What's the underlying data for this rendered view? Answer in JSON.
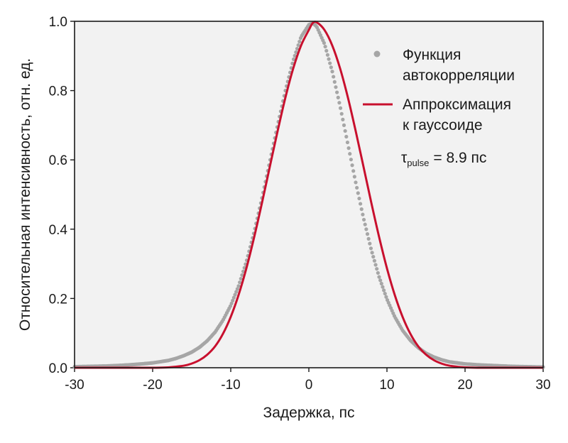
{
  "chart_data": {
    "type": "line",
    "xlabel": "Задержка, пс",
    "ylabel": "Относительная интенсивность, отн. ед.",
    "xlim": [
      -30,
      30
    ],
    "ylim": [
      0,
      1.0
    ],
    "x_ticks": [
      "-30",
      "-20",
      "-10",
      "0",
      "10",
      "20",
      "30"
    ],
    "y_ticks": [
      "0.0",
      "0.2",
      "0.4",
      "0.6",
      "0.8",
      "1.0"
    ],
    "grid": false,
    "legend_position": "top-right",
    "colors": {
      "measured": "#a6a6a6",
      "fit": "#c8102e",
      "plot_background": "#f2f2f2"
    },
    "series": [
      {
        "name_line1": "Функция",
        "name_line2": "автокорреляции",
        "style": "scatter",
        "x": [
          -30,
          -28,
          -26,
          -24,
          -22,
          -20,
          -18,
          -17,
          -16,
          -15,
          -14,
          -13,
          -12,
          -11,
          -10,
          -9,
          -8,
          -7,
          -6,
          -5,
          -4,
          -3,
          -2,
          -1,
          0,
          0.5,
          1,
          2,
          3,
          4,
          5,
          6,
          7,
          8,
          9,
          10,
          11,
          12,
          13,
          14,
          15,
          16,
          17,
          18,
          20,
          22,
          24,
          26,
          28,
          30
        ],
        "y": [
          0.003,
          0.004,
          0.005,
          0.007,
          0.01,
          0.014,
          0.021,
          0.027,
          0.035,
          0.045,
          0.059,
          0.078,
          0.103,
          0.137,
          0.18,
          0.236,
          0.306,
          0.392,
          0.49,
          0.595,
          0.7,
          0.8,
          0.887,
          0.955,
          0.99,
          0.995,
          0.985,
          0.935,
          0.855,
          0.755,
          0.645,
          0.535,
          0.432,
          0.34,
          0.262,
          0.198,
          0.147,
          0.108,
          0.079,
          0.058,
          0.042,
          0.031,
          0.023,
          0.017,
          0.011,
          0.008,
          0.006,
          0.004,
          0.003,
          0.002
        ]
      },
      {
        "name_line1": "Аппроксимация",
        "name_line2": "к гауссоиде",
        "style": "line",
        "x": [
          -30,
          -28,
          -26,
          -24,
          -22,
          -20,
          -18,
          -16,
          -15,
          -14,
          -13,
          -12,
          -11,
          -10,
          -9,
          -8,
          -7,
          -6,
          -5,
          -4,
          -3,
          -2,
          -1,
          0,
          0.5,
          1,
          2,
          3,
          4,
          5,
          6,
          7,
          8,
          9,
          10,
          11,
          12,
          13,
          14,
          15,
          16,
          17,
          18,
          20,
          22,
          24,
          26,
          28,
          30
        ],
        "y": [
          0,
          0,
          0,
          0,
          0,
          0,
          0.001,
          0.006,
          0.012,
          0.022,
          0.038,
          0.062,
          0.098,
          0.147,
          0.21,
          0.287,
          0.377,
          0.476,
          0.58,
          0.683,
          0.78,
          0.864,
          0.93,
          0.975,
          0.995,
          0.997,
          0.975,
          0.93,
          0.864,
          0.78,
          0.683,
          0.58,
          0.476,
          0.377,
          0.287,
          0.21,
          0.147,
          0.098,
          0.062,
          0.038,
          0.022,
          0.012,
          0.006,
          0.001,
          0,
          0,
          0,
          0,
          0
        ]
      }
    ],
    "annotation": {
      "symbol": "τ",
      "subscript": "pulse",
      "value_text": "= 8.9 пс"
    }
  }
}
